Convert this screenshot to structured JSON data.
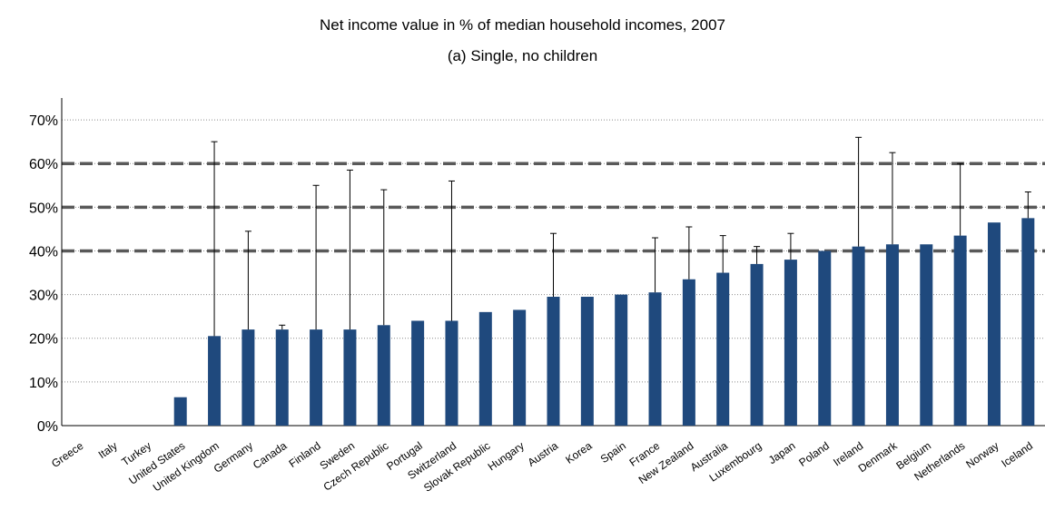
{
  "chart_data": {
    "type": "bar",
    "title": "Net income value in % of median household incomes, 2007",
    "subtitle": "(a) Single, no children",
    "xlabel": "",
    "ylabel": "",
    "ylim": [
      0,
      75
    ],
    "yticks": [
      "0%",
      "10%",
      "20%",
      "30%",
      "40%",
      "50%",
      "60%",
      "70%"
    ],
    "grid": true,
    "reference_lines": [
      40,
      50,
      60
    ],
    "colors": {
      "bar": "#1f497d",
      "reference_line": "#595959",
      "grid": "#8c8c8c"
    },
    "categories": [
      "Greece",
      "Italy",
      "Turkey",
      "United States",
      "United Kingdom",
      "Germany",
      "Canada",
      "Finland",
      "Sweden",
      "Czech Republic",
      "Portugal",
      "Switzerland",
      "Slovak Republic",
      "Hungary",
      "Austria",
      "Korea",
      "Spain",
      "France",
      "New Zealand",
      "Australia",
      "Luxembourg",
      "Japan",
      "Poland",
      "Ireland",
      "Denmark",
      "Belgium",
      "Netherlands",
      "Norway",
      "Iceland"
    ],
    "values": [
      0,
      0,
      0,
      6.5,
      20.5,
      22,
      22,
      22,
      22,
      23,
      24,
      24,
      26,
      26.5,
      29.5,
      29.5,
      30,
      30.5,
      33.5,
      35,
      37,
      38,
      40,
      41,
      41.5,
      41.5,
      43.5,
      46.5,
      47.5
    ],
    "error_upper": [
      null,
      null,
      null,
      null,
      65,
      44.5,
      23,
      55,
      58.5,
      54,
      null,
      56,
      null,
      null,
      44,
      null,
      null,
      43,
      45.5,
      43.5,
      41,
      44,
      null,
      66,
      62.5,
      null,
      60,
      null,
      53.5
    ]
  }
}
